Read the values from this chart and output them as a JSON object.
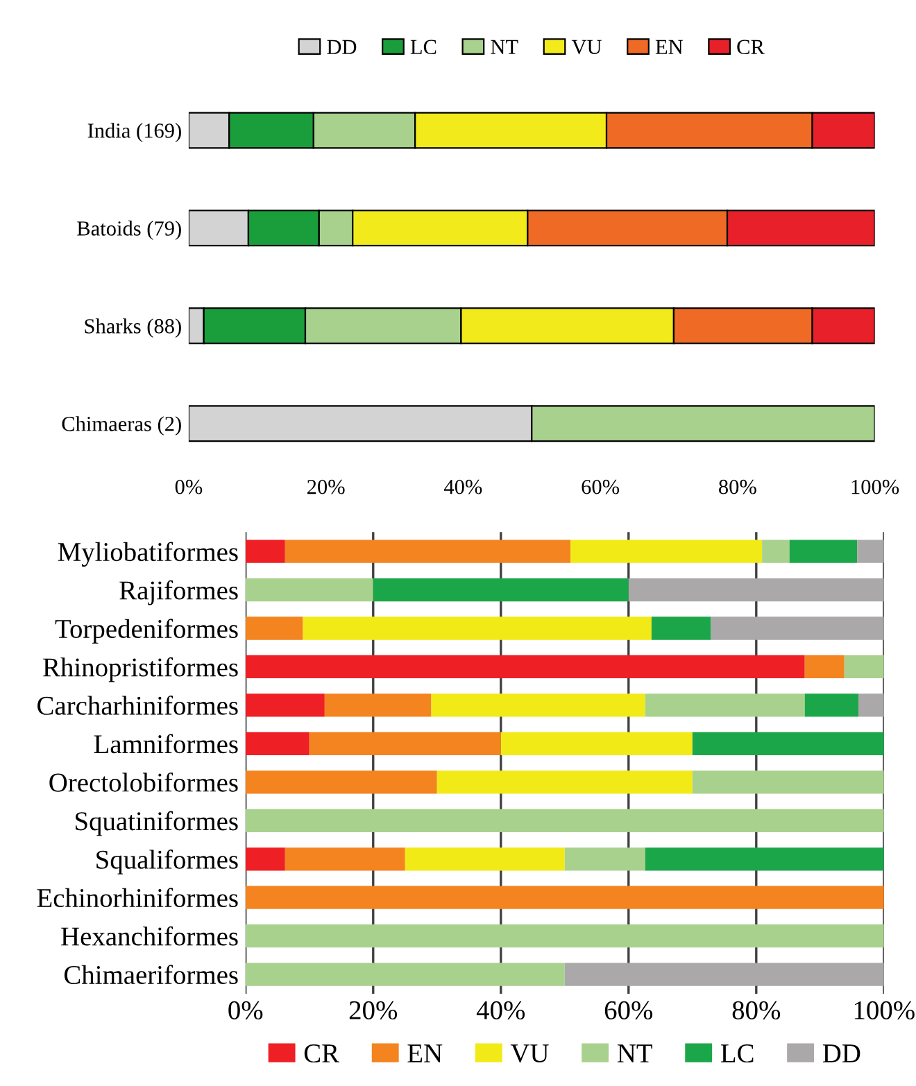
{
  "chart_data": [
    {
      "type": "bar",
      "orientation": "horizontal",
      "stacked": true,
      "categories": [
        "India (169)",
        "Batoids (79)",
        "Sharks (88)",
        "Chimaeras (2)"
      ],
      "series": [
        {
          "name": "DD",
          "color": "#d3d3d3",
          "values": [
            5.9,
            8.7,
            2.2,
            50
          ]
        },
        {
          "name": "LC",
          "color": "#1a9e3c",
          "values": [
            12.3,
            10.3,
            14.8,
            null
          ]
        },
        {
          "name": "NT",
          "color": "#a8d18d",
          "values": [
            14.8,
            4.9,
            22.7,
            50
          ]
        },
        {
          "name": "VU",
          "color": "#f2ea1a",
          "values": [
            27.9,
            25.5,
            31.0,
            null
          ]
        },
        {
          "name": "EN",
          "color": "#ef6a25",
          "values": [
            30.0,
            29.1,
            20.2,
            null
          ]
        },
        {
          "name": "CR",
          "color": "#e8202a",
          "values": [
            9.1,
            21.5,
            9.1,
            null
          ]
        }
      ],
      "xlim": [
        0,
        100
      ],
      "xticks": [
        {
          "value": 0,
          "label": "0%"
        },
        {
          "value": 20,
          "label": "20%"
        },
        {
          "value": 40,
          "label": "40%"
        },
        {
          "value": 60,
          "label": "60%"
        },
        {
          "value": 80,
          "label": "80%"
        },
        {
          "value": 100,
          "label": "100%"
        }
      ],
      "legend": "top",
      "grid": false
    },
    {
      "type": "bar",
      "orientation": "horizontal",
      "stacked": true,
      "categories": [
        "Myliobatiformes",
        "Rajiformes",
        "Torpedeniformes",
        "Rhinopristiformes",
        "Carcharhiniformes",
        "Lamniformes",
        "Orectolobiformes",
        "Squatiniformes",
        "Squaliformes",
        "Echinorhiniformes",
        "Hexanchiformes",
        "Chimaeriformes"
      ],
      "series": [
        {
          "name": "CR",
          "color": "#ee1f25",
          "values": [
            6.2,
            null,
            null,
            87.6,
            12.4,
            10,
            null,
            null,
            6.2,
            null,
            null,
            null
          ]
        },
        {
          "name": "EN",
          "color": "#f3841f",
          "values": [
            44.7,
            null,
            9,
            6.2,
            16.7,
            30,
            30,
            null,
            18.8,
            100,
            null,
            null
          ]
        },
        {
          "name": "VU",
          "color": "#f2ea16",
          "values": [
            30.0,
            null,
            54.6,
            null,
            33.5,
            30,
            40,
            null,
            25,
            null,
            null,
            null
          ]
        },
        {
          "name": "NT",
          "color": "#a9d18e",
          "values": [
            4.3,
            20,
            null,
            6.2,
            25,
            null,
            30,
            100,
            12.6,
            null,
            100,
            50
          ]
        },
        {
          "name": "LC",
          "color": "#1ca64a",
          "values": [
            10.6,
            40,
            9.3,
            null,
            8.4,
            30,
            null,
            null,
            37.4,
            null,
            null,
            null
          ]
        },
        {
          "name": "DD",
          "color": "#aaa8a8",
          "values": [
            4.2,
            40,
            27.1,
            null,
            4,
            null,
            null,
            null,
            null,
            null,
            null,
            50
          ]
        }
      ],
      "xlim": [
        0,
        100
      ],
      "xticks": [
        {
          "value": 0,
          "label": "0%"
        },
        {
          "value": 20,
          "label": "20%"
        },
        {
          "value": 40,
          "label": "40%"
        },
        {
          "value": 60,
          "label": "60%"
        },
        {
          "value": 80,
          "label": "80%"
        },
        {
          "value": 100,
          "label": "100%"
        }
      ],
      "legend": "bottom",
      "grid": "x"
    }
  ]
}
